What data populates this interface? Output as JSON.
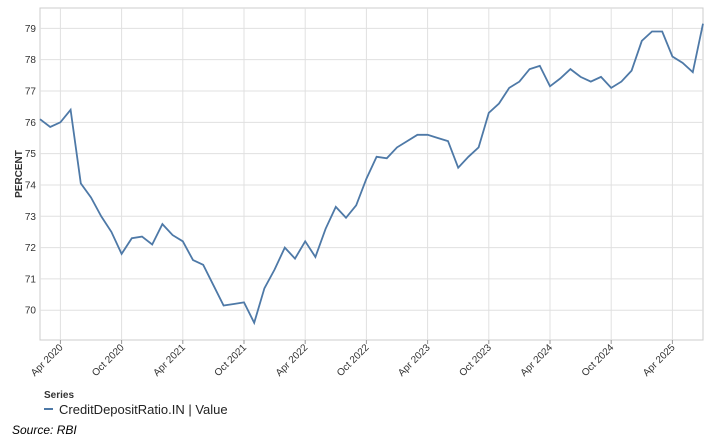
{
  "chart_data": {
    "type": "line",
    "y_label": "PERCENT",
    "legend_title": "Series",
    "source": "Source: RBI",
    "x": [
      "2020-02",
      "2020-03",
      "2020-04",
      "2020-05",
      "2020-06",
      "2020-07",
      "2020-08",
      "2020-09",
      "2020-10",
      "2020-11",
      "2020-12",
      "2021-01",
      "2021-02",
      "2021-03",
      "2021-04",
      "2021-05",
      "2021-06",
      "2021-07",
      "2021-08",
      "2021-09",
      "2021-10",
      "2021-11",
      "2021-12",
      "2022-01",
      "2022-02",
      "2022-03",
      "2022-04",
      "2022-05",
      "2022-06",
      "2022-07",
      "2022-08",
      "2022-09",
      "2022-10",
      "2022-11",
      "2022-12",
      "2023-01",
      "2023-02",
      "2023-03",
      "2023-04",
      "2023-05",
      "2023-06",
      "2023-07",
      "2023-08",
      "2023-09",
      "2023-10",
      "2023-11",
      "2023-12",
      "2024-01",
      "2024-02",
      "2024-03",
      "2024-04",
      "2024-05",
      "2024-06",
      "2024-07",
      "2024-08",
      "2024-09",
      "2024-10",
      "2024-11",
      "2024-12",
      "2025-01",
      "2025-02",
      "2025-03",
      "2025-04",
      "2025-05",
      "2025-06",
      "2025-07"
    ],
    "series": [
      {
        "name": "CreditDepositRatio.IN | Value",
        "color": "#4e79a7",
        "values": [
          76.1,
          75.85,
          76.0,
          76.4,
          74.05,
          73.6,
          73.0,
          72.5,
          71.8,
          72.3,
          72.35,
          72.1,
          72.75,
          72.4,
          72.2,
          71.6,
          71.45,
          70.8,
          70.15,
          70.2,
          70.25,
          69.6,
          70.7,
          71.3,
          72.0,
          71.65,
          72.2,
          71.7,
          72.6,
          73.3,
          72.95,
          73.35,
          74.2,
          74.9,
          74.85,
          75.2,
          75.4,
          75.6,
          75.6,
          75.5,
          75.4,
          74.55,
          74.9,
          75.2,
          76.3,
          76.6,
          77.1,
          77.3,
          77.7,
          77.8,
          77.15,
          77.4,
          77.7,
          77.45,
          77.3,
          77.45,
          77.1,
          77.3,
          77.65,
          78.6,
          78.9,
          78.9,
          78.1,
          77.9,
          77.6,
          79.15
        ]
      }
    ],
    "xlim": [
      "2020-02",
      "2025-07"
    ],
    "xticks": [
      {
        "value": "2020-04",
        "label": "Apr 2020"
      },
      {
        "value": "2020-10",
        "label": "Oct 2020"
      },
      {
        "value": "2021-04",
        "label": "Apr 2021"
      },
      {
        "value": "2021-10",
        "label": "Oct 2021"
      },
      {
        "value": "2022-04",
        "label": "Apr 2022"
      },
      {
        "value": "2022-10",
        "label": "Oct 2022"
      },
      {
        "value": "2023-04",
        "label": "Apr 2023"
      },
      {
        "value": "2023-10",
        "label": "Oct 2023"
      },
      {
        "value": "2024-04",
        "label": "Apr 2024"
      },
      {
        "value": "2024-10",
        "label": "Oct 2024"
      },
      {
        "value": "2025-04",
        "label": "Apr 2025"
      }
    ],
    "ylim": [
      69.05,
      79.65
    ],
    "yticks": [
      70,
      71,
      72,
      73,
      74,
      75,
      76,
      77,
      78,
      79
    ],
    "grid": true
  }
}
